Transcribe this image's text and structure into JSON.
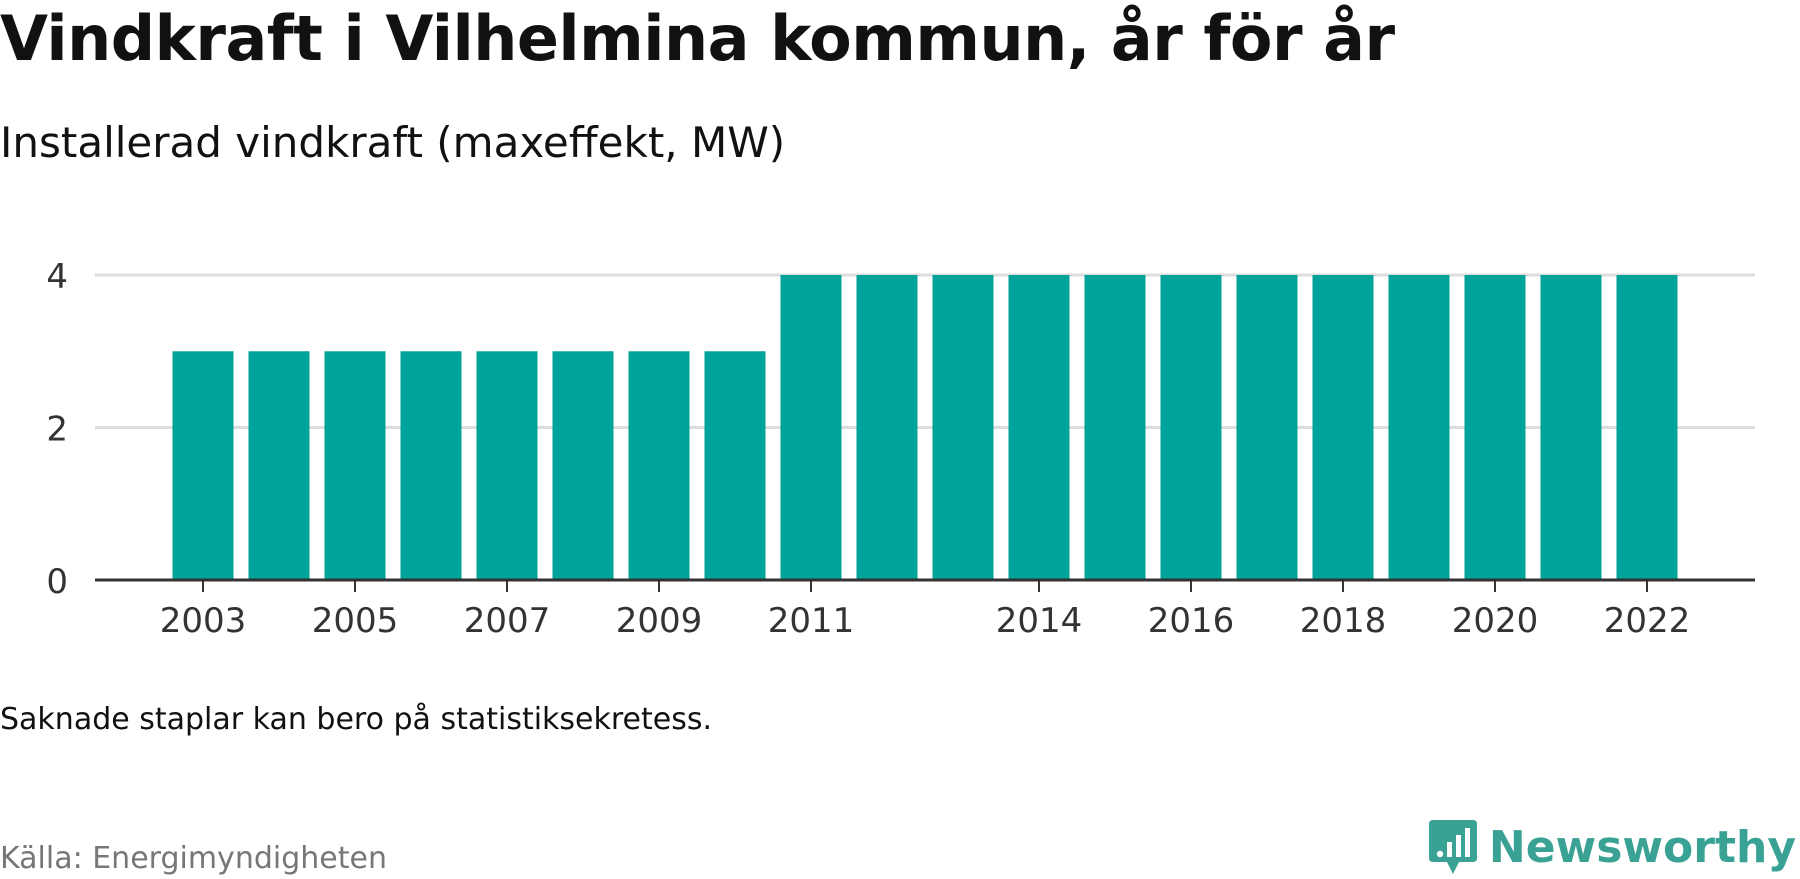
{
  "header": {
    "title": "Vindkraft i Vilhelmina kommun, år för år",
    "subtitle": "Installerad vindkraft (maxeffekt, MW)"
  },
  "footer": {
    "note": "Saknade staplar kan bero på statistiksekretess.",
    "source": "Källa: Energimyndigheten",
    "brand": "Newsworthy"
  },
  "colors": {
    "bar": "#00a39a",
    "grid": "#dddddd",
    "axis": "#333333",
    "brand": "#3aa195"
  },
  "chart_data": {
    "type": "bar",
    "title": "Vindkraft i Vilhelmina kommun, år för år",
    "subtitle": "Installerad vindkraft (maxeffekt, MW)",
    "categories": [
      "2003",
      "2004",
      "2005",
      "2006",
      "2007",
      "2008",
      "2009",
      "2010",
      "2011",
      "2012",
      "2013",
      "2014",
      "2015",
      "2016",
      "2017",
      "2018",
      "2019",
      "2020",
      "2021",
      "2022"
    ],
    "values": [
      3,
      3,
      3,
      3,
      3,
      3,
      3,
      3,
      4,
      4,
      4,
      4,
      4,
      4,
      4,
      4,
      4,
      4,
      4,
      4
    ],
    "x_tick_labels": [
      "2003",
      "2005",
      "2007",
      "2009",
      "2011",
      "2014",
      "2016",
      "2018",
      "2020",
      "2022"
    ],
    "y_ticks": [
      0,
      2,
      4
    ],
    "ylim": [
      0,
      4
    ],
    "grid": true,
    "legend": "none"
  }
}
